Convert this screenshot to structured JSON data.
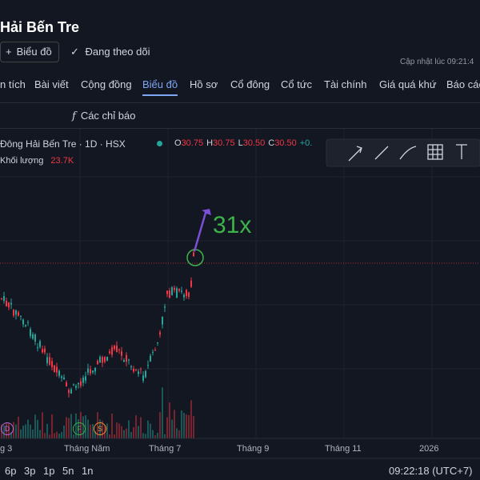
{
  "header": {
    "title": "Hải Bến Tre",
    "chart_button": "Biểu đồ",
    "follow_button": "Đang theo dõi",
    "updated": "Cập nhật lúc  09:21:4"
  },
  "tabs": [
    "n tích",
    "Bài viết",
    "Cộng đồng",
    "Biểu đồ",
    "Hồ sơ",
    "Cổ đông",
    "Cổ tức",
    "Tài chính",
    "Giá quá khứ",
    "Báo các"
  ],
  "active_tab": 3,
  "toolbar": {
    "indicators": "Các chỉ báo"
  },
  "legend": {
    "symbol": "Đông Hải Bến Tre · 1D · HSX",
    "ohlc": [
      {
        "key": "O",
        "value": "30.75"
      },
      {
        "key": "H",
        "value": "30.75"
      },
      {
        "key": "L",
        "value": "30.50"
      },
      {
        "key": "C",
        "value": "30.50"
      }
    ],
    "change": "+0.",
    "volume_label": "Khối lượng",
    "volume": "23.7K"
  },
  "annotation": "31x",
  "x_axis": [
    "g 3",
    "Tháng Năm",
    "Tháng 7",
    "Tháng 9",
    "Tháng 11",
    "2026"
  ],
  "events": [
    "D",
    "F",
    "S"
  ],
  "timeframes": [
    "6p",
    "3p",
    "1p",
    "5n",
    "1n"
  ],
  "clock": "09:22:18 (UTC+7)"
}
